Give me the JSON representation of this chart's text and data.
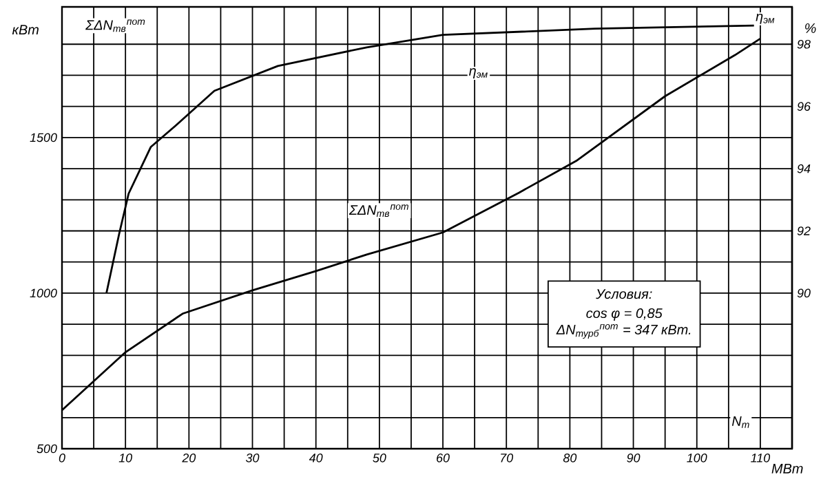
{
  "chart_data": {
    "type": "line",
    "xlabel": "МВт",
    "ylabel": "кВт",
    "y2label": "%",
    "annotations": [
      "ΣΔN$_{тв}$$^{пот}$",
      "η$_{эм}$",
      "N$_{т}$",
      "Условия:",
      "cos φ = 0,85",
      "ΔN$_{турб}$$^{пот}$ = 347 кВт."
    ],
    "xlim": [
      0,
      115
    ],
    "ylim": [
      500,
      1920
    ],
    "y2lim": [
      85,
      99.2
    ],
    "xticks": [
      0,
      {
        "value": 5,
        "label": null
      },
      10,
      {
        "value": 15,
        "label": null
      },
      20,
      {
        "value": 25,
        "label": null
      },
      30,
      {
        "value": 35,
        "label": null
      },
      40,
      {
        "value": 45,
        "label": null
      },
      50,
      {
        "value": 55,
        "label": null
      },
      60,
      {
        "value": 65,
        "label": null
      },
      70,
      {
        "value": 75,
        "label": null
      },
      80,
      {
        "value": 85,
        "label": null
      },
      90,
      {
        "value": 95,
        "label": null
      },
      100,
      {
        "value": 105,
        "label": null
      },
      110
    ],
    "yticks": [
      500,
      {
        "value": 600,
        "label": null
      },
      {
        "value": 700,
        "label": null
      },
      {
        "value": 800,
        "label": null
      },
      {
        "value": 900,
        "label": null
      },
      1000,
      {
        "value": 1100,
        "label": null
      },
      {
        "value": 1200,
        "label": null
      },
      {
        "value": 1300,
        "label": null
      },
      {
        "value": 1400,
        "label": null
      },
      1500,
      {
        "value": 1600,
        "label": null
      },
      {
        "value": 1700,
        "label": null
      },
      {
        "value": 1800,
        "label": null
      }
    ],
    "y2ticks": [
      90,
      92,
      94,
      96,
      98
    ],
    "grid": true,
    "legend": false,
    "marker": "none",
    "line_style": "solid",
    "series": [
      {
        "name": "ΣΔN$_{тв}$$^{пот}$",
        "color": "#000000",
        "x": [
          0,
          10,
          19,
          30,
          40,
          48,
          60,
          72,
          81,
          95,
          106,
          110
        ],
        "values": [
          624,
          810,
          934,
          1009,
          1071,
          1124,
          1195,
          1323,
          1425,
          1633,
          1765,
          1818
        ]
      },
      {
        "name": "η$_{эм}$",
        "axis": "y2",
        "color": "#000000",
        "x": [
          7,
          9,
          10.5,
          14,
          18,
          24,
          34,
          48,
          60,
          84,
          109
        ],
        "values": [
          90.0,
          91.9,
          93.2,
          94.7,
          95.4,
          96.5,
          97.3,
          97.9,
          98.3,
          98.5,
          98.6
        ]
      }
    ]
  }
}
